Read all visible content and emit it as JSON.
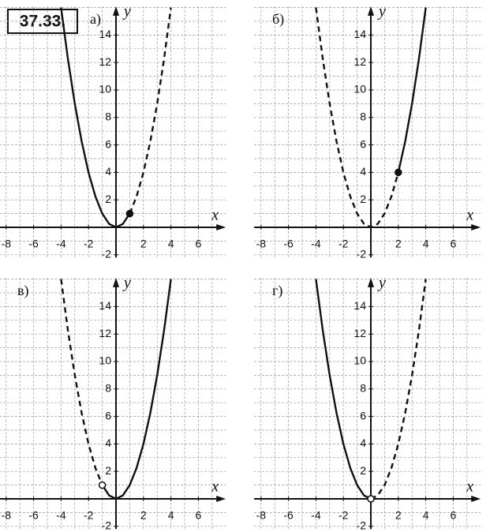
{
  "title": "37.33.",
  "chart_data": [
    {
      "type": "line",
      "label": "а)",
      "xlabel": "x",
      "ylabel": "y",
      "xlim": [
        -8.5,
        8
      ],
      "ylim": [
        -2.2,
        16.1
      ],
      "xticks": [
        -8,
        -6,
        -4,
        -2,
        2,
        4,
        6
      ],
      "yticks": [
        -2,
        2,
        4,
        6,
        8,
        10,
        12,
        14
      ],
      "xgrid": [
        -8,
        -7,
        -6,
        -5,
        -4,
        -3,
        -2,
        -1,
        1,
        2,
        3,
        4,
        5,
        6,
        7
      ],
      "ygrid": [
        -2,
        -1,
        1,
        2,
        3,
        4,
        5,
        6,
        7,
        8,
        9,
        10,
        11,
        12,
        13,
        14,
        15,
        16
      ],
      "series": [
        {
          "style": "solid",
          "color": "#111111",
          "x": [
            -4,
            -3.5,
            -3,
            -2.5,
            -2,
            -1.5,
            -1,
            -0.5,
            0,
            0.5,
            1
          ],
          "values": [
            16,
            12.25,
            9,
            6.25,
            4,
            2.25,
            1,
            0.25,
            0,
            0.25,
            1
          ]
        },
        {
          "style": "dashed",
          "color": "#111111",
          "x": [
            1,
            1.5,
            2,
            2.5,
            3,
            3.5,
            4
          ],
          "values": [
            1,
            2.25,
            4,
            6.25,
            9,
            12.25,
            16
          ]
        }
      ],
      "points": [
        {
          "x": 1,
          "y": 1,
          "filled": true
        }
      ]
    },
    {
      "type": "line",
      "label": "б)",
      "xlabel": "x",
      "ylabel": "y",
      "xlim": [
        -8.5,
        8
      ],
      "ylim": [
        -2.2,
        16.1
      ],
      "xticks": [
        -8,
        -6,
        -4,
        -2,
        2,
        4,
        6
      ],
      "yticks": [
        -2,
        2,
        4,
        6,
        8,
        10,
        12,
        14
      ],
      "xgrid": [
        -8,
        -7,
        -6,
        -5,
        -4,
        -3,
        -2,
        -1,
        1,
        2,
        3,
        4,
        5,
        6,
        7
      ],
      "ygrid": [
        -2,
        -1,
        1,
        2,
        3,
        4,
        5,
        6,
        7,
        8,
        9,
        10,
        11,
        12,
        13,
        14,
        15,
        16
      ],
      "series": [
        {
          "style": "dashed",
          "color": "#111111",
          "x": [
            -4,
            -3.5,
            -3,
            -2.5,
            -2,
            -1.5,
            -1,
            -0.5,
            0,
            0.5,
            1,
            1.5,
            2
          ],
          "values": [
            16,
            12.25,
            9,
            6.25,
            4,
            2.25,
            1,
            0.25,
            0,
            0.25,
            1,
            2.25,
            4
          ]
        },
        {
          "style": "solid",
          "color": "#111111",
          "x": [
            2,
            2.5,
            3,
            3.5,
            4
          ],
          "values": [
            4,
            6.25,
            9,
            12.25,
            16
          ]
        }
      ],
      "points": [
        {
          "x": 2,
          "y": 4,
          "filled": true
        }
      ]
    },
    {
      "type": "line",
      "label": "в)",
      "xlabel": "x",
      "ylabel": "y",
      "xlim": [
        -8.5,
        8
      ],
      "ylim": [
        -2.2,
        16.1
      ],
      "xticks": [
        -8,
        -6,
        -4,
        -2,
        2,
        4,
        6
      ],
      "yticks": [
        -2,
        2,
        4,
        6,
        8,
        10,
        12,
        14
      ],
      "xgrid": [
        -8,
        -7,
        -6,
        -5,
        -4,
        -3,
        -2,
        -1,
        1,
        2,
        3,
        4,
        5,
        6,
        7
      ],
      "ygrid": [
        -2,
        -1,
        1,
        2,
        3,
        4,
        5,
        6,
        7,
        8,
        9,
        10,
        11,
        12,
        13,
        14,
        15,
        16
      ],
      "series": [
        {
          "style": "dashed",
          "color": "#111111",
          "x": [
            -4,
            -3.5,
            -3,
            -2.5,
            -2,
            -1.5,
            -1
          ],
          "values": [
            16,
            12.25,
            9,
            6.25,
            4,
            2.25,
            1
          ]
        },
        {
          "style": "solid",
          "color": "#111111",
          "x": [
            -1,
            -0.5,
            0,
            0.5,
            1,
            1.5,
            2,
            2.5,
            3,
            3.5,
            4
          ],
          "values": [
            1,
            0.25,
            0,
            0.25,
            1,
            2.25,
            4,
            6.25,
            9,
            12.25,
            16
          ]
        }
      ],
      "points": [
        {
          "x": -1,
          "y": 1,
          "filled": false
        }
      ]
    },
    {
      "type": "line",
      "label": "г)",
      "xlabel": "x",
      "ylabel": "y",
      "xlim": [
        -8.5,
        8
      ],
      "ylim": [
        -2.2,
        16.1
      ],
      "xticks": [
        -8,
        -6,
        -4,
        -2,
        2,
        4,
        6
      ],
      "yticks": [
        -2,
        2,
        4,
        6,
        8,
        10,
        12,
        14
      ],
      "xgrid": [
        -8,
        -7,
        -6,
        -5,
        -4,
        -3,
        -2,
        -1,
        1,
        2,
        3,
        4,
        5,
        6,
        7
      ],
      "ygrid": [
        -2,
        -1,
        1,
        2,
        3,
        4,
        5,
        6,
        7,
        8,
        9,
        10,
        11,
        12,
        13,
        14,
        15,
        16
      ],
      "series": [
        {
          "style": "solid",
          "color": "#111111",
          "x": [
            -4,
            -3.5,
            -3,
            -2.5,
            -2,
            -1.5,
            -1,
            -0.5,
            0
          ],
          "values": [
            16,
            12.25,
            9,
            6.25,
            4,
            2.25,
            1,
            0.25,
            0
          ]
        },
        {
          "style": "dashed",
          "color": "#111111",
          "x": [
            0,
            0.5,
            1,
            1.5,
            2,
            2.5,
            3,
            3.5,
            4
          ],
          "values": [
            0,
            0.25,
            1,
            2.25,
            4,
            6.25,
            9,
            12.25,
            16
          ]
        }
      ],
      "points": [
        {
          "x": 0,
          "y": 0,
          "filled": false
        }
      ]
    }
  ]
}
